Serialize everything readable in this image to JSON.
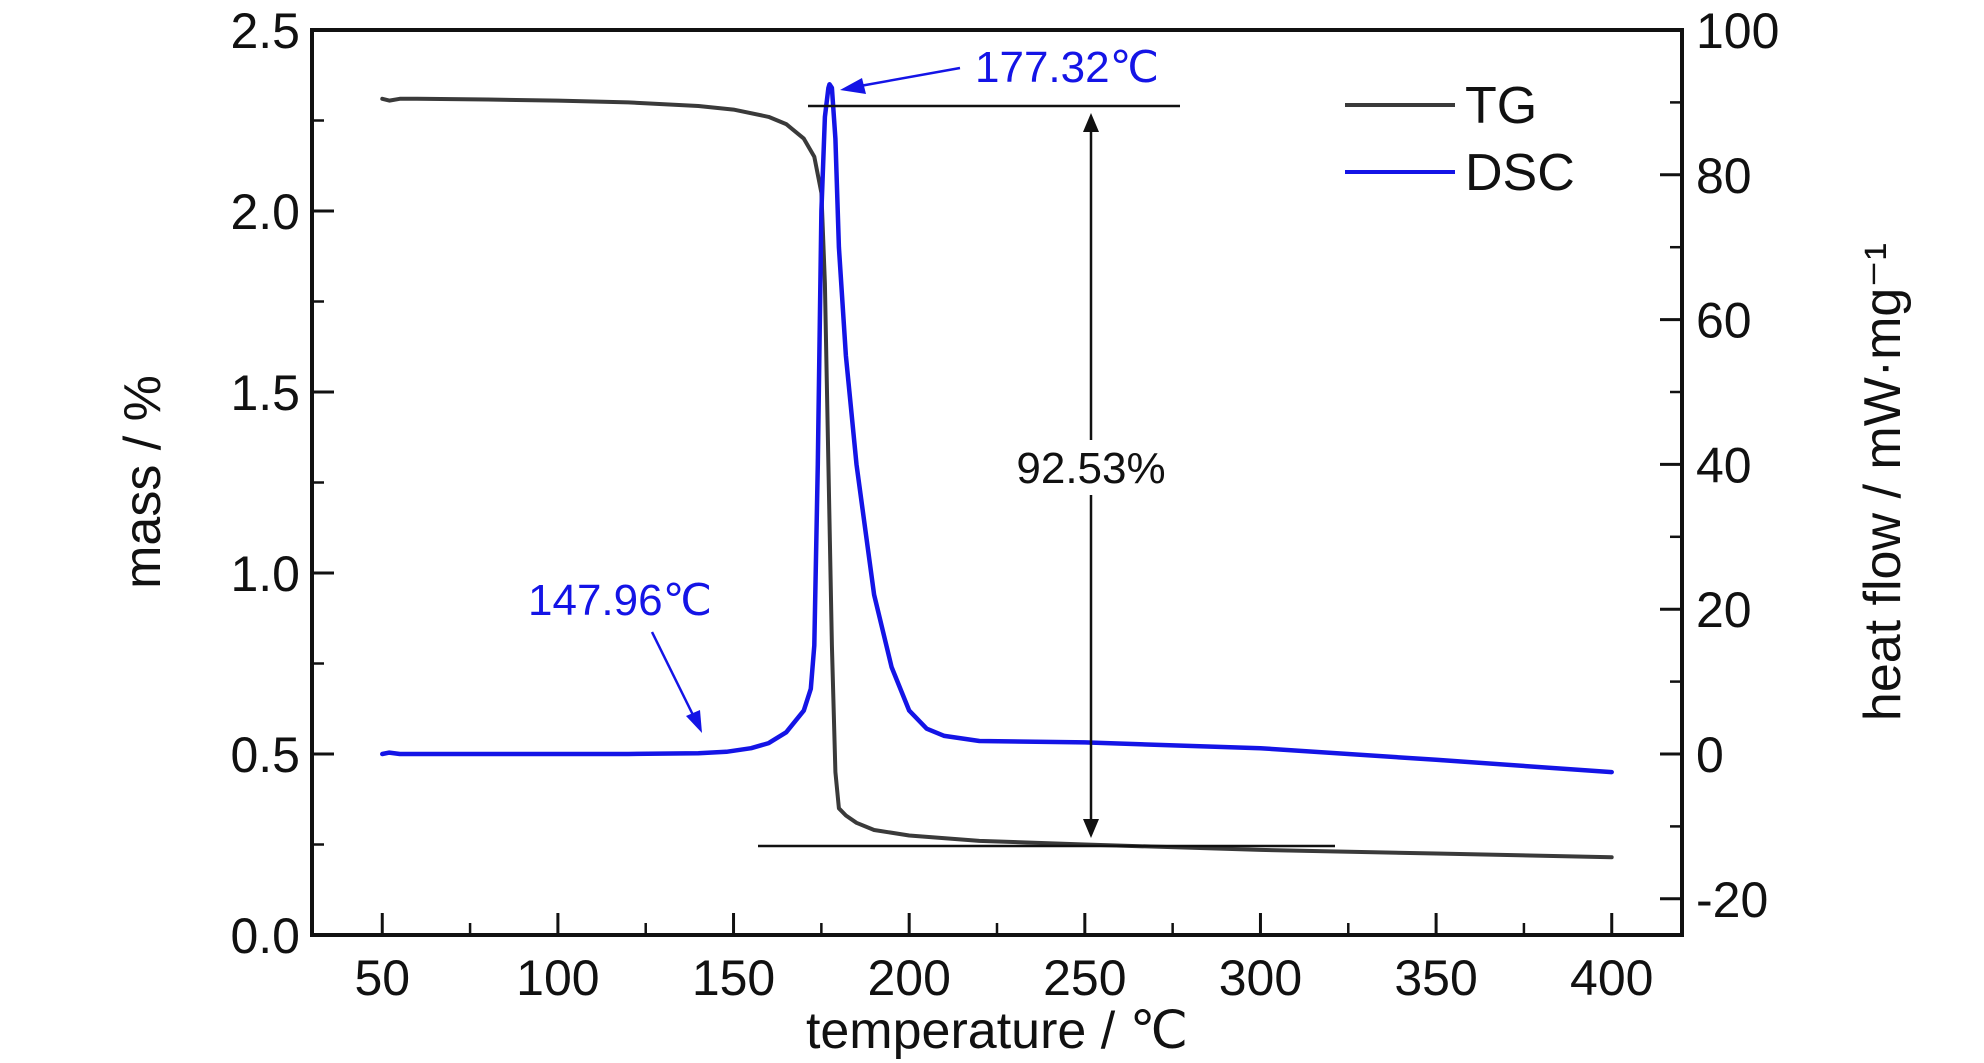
{
  "chart_data": {
    "type": "line",
    "xlabel": "temperature / ℃",
    "ylabel_left": "mass / %",
    "ylabel_right": "heat flow / mW·mg⁻¹",
    "xlim": [
      30,
      420
    ],
    "ylim_left": [
      0,
      2.5
    ],
    "ylim_right": [
      -25,
      100
    ],
    "x_ticks": [
      50,
      100,
      150,
      200,
      250,
      300,
      350,
      400
    ],
    "x_tick_labels": [
      "50",
      "100",
      "150",
      "200",
      "250",
      "300",
      "350",
      "400"
    ],
    "y_left_ticks": [
      0.0,
      0.5,
      1.0,
      1.5,
      2.0,
      2.5
    ],
    "y_left_tick_labels": [
      "0.0",
      "0.5",
      "1.0",
      "1.5",
      "2.0",
      "2.5"
    ],
    "y_right_ticks": [
      -20,
      0,
      20,
      40,
      60,
      80,
      100
    ],
    "y_right_tick_labels": [
      "-20",
      "0",
      "20",
      "40",
      "60",
      "80",
      "100"
    ],
    "grid": false,
    "legend_position": "top-right",
    "series": [
      {
        "name": "TG",
        "axis": "left",
        "color": "#3a3a3a",
        "points": [
          [
            50,
            2.31
          ],
          [
            52,
            2.305
          ],
          [
            55,
            2.31
          ],
          [
            60,
            2.31
          ],
          [
            80,
            2.308
          ],
          [
            100,
            2.305
          ],
          [
            120,
            2.3
          ],
          [
            140,
            2.29
          ],
          [
            150,
            2.28
          ],
          [
            160,
            2.26
          ],
          [
            165,
            2.24
          ],
          [
            170,
            2.2
          ],
          [
            173,
            2.15
          ],
          [
            175,
            2.05
          ],
          [
            176,
            1.8
          ],
          [
            177,
            1.3
          ],
          [
            178,
            0.8
          ],
          [
            179,
            0.45
          ],
          [
            180,
            0.35
          ],
          [
            182,
            0.33
          ],
          [
            185,
            0.31
          ],
          [
            190,
            0.29
          ],
          [
            200,
            0.275
          ],
          [
            220,
            0.26
          ],
          [
            250,
            0.25
          ],
          [
            300,
            0.235
          ],
          [
            350,
            0.225
          ],
          [
            400,
            0.215
          ]
        ]
      },
      {
        "name": "DSC",
        "axis": "right",
        "color": "#1414e6",
        "points": [
          [
            50,
            0
          ],
          [
            52,
            0.2
          ],
          [
            55,
            0
          ],
          [
            60,
            0
          ],
          [
            80,
            0
          ],
          [
            100,
            0
          ],
          [
            120,
            0
          ],
          [
            140,
            0.1
          ],
          [
            147.96,
            0.3
          ],
          [
            155,
            0.8
          ],
          [
            160,
            1.5
          ],
          [
            165,
            3
          ],
          [
            170,
            6
          ],
          [
            172,
            9
          ],
          [
            173,
            15
          ],
          [
            174,
            40
          ],
          [
            175,
            75
          ],
          [
            176,
            88
          ],
          [
            177,
            92
          ],
          [
            177.32,
            92.5
          ],
          [
            178,
            92
          ],
          [
            179,
            85
          ],
          [
            180,
            70
          ],
          [
            182,
            55
          ],
          [
            185,
            40
          ],
          [
            190,
            22
          ],
          [
            195,
            12
          ],
          [
            200,
            6
          ],
          [
            205,
            3.5
          ],
          [
            210,
            2.5
          ],
          [
            220,
            1.8
          ],
          [
            250,
            1.6
          ],
          [
            300,
            0.8
          ],
          [
            350,
            -0.8
          ],
          [
            400,
            -2.5
          ]
        ]
      }
    ],
    "annotations": [
      {
        "text": "177.32℃",
        "x": 177.32,
        "series": "DSC"
      },
      {
        "text": "147.96℃",
        "x": 147.96,
        "series": "DSC"
      },
      {
        "text": "92.53%",
        "series": "TG"
      }
    ]
  }
}
